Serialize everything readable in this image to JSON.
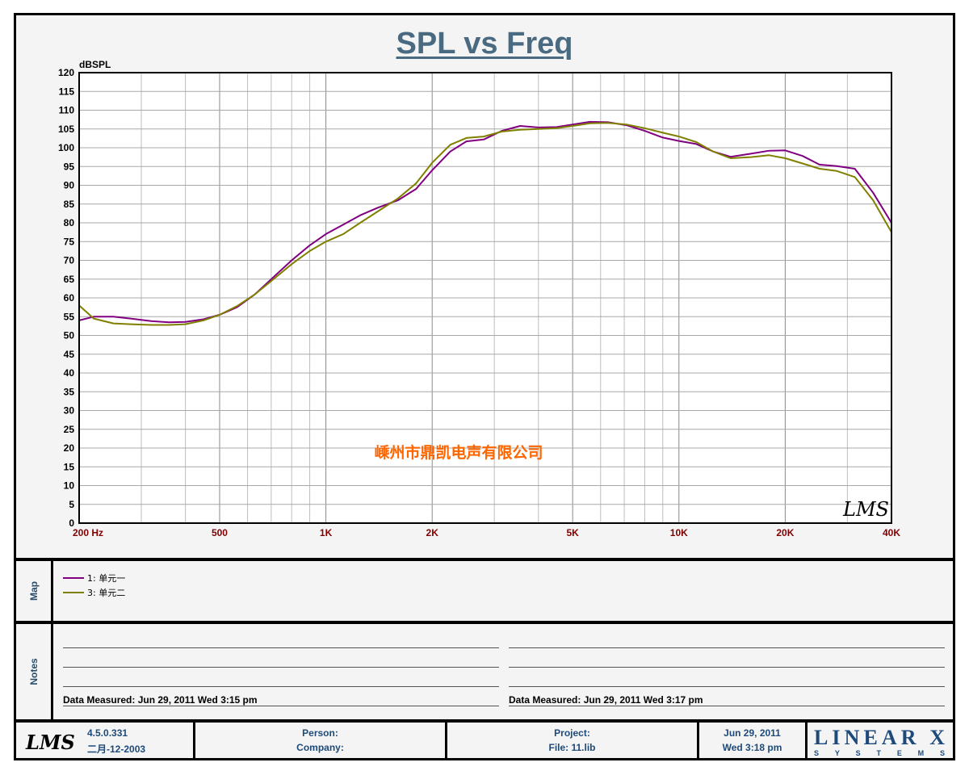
{
  "title": "SPL vs Freq",
  "watermark": "嵊州市鼎凯电声有限公司",
  "logo": "LMS",
  "chart_data": {
    "type": "line",
    "xscale": "log",
    "xlim": [
      200,
      40000
    ],
    "ylim": [
      0,
      120
    ],
    "ylabel": "dBSPL",
    "xlabel": "",
    "grid": true,
    "y_ticks": [
      0,
      5,
      10,
      15,
      20,
      25,
      30,
      35,
      40,
      45,
      50,
      55,
      60,
      65,
      70,
      75,
      80,
      85,
      90,
      95,
      100,
      105,
      110,
      115,
      120
    ],
    "x_tick_labels": [
      {
        "value": 200,
        "label": "200  Hz"
      },
      {
        "value": 500,
        "label": "500"
      },
      {
        "value": 1000,
        "label": "1K"
      },
      {
        "value": 2000,
        "label": "2K"
      },
      {
        "value": 5000,
        "label": "5K"
      },
      {
        "value": 10000,
        "label": "10K"
      },
      {
        "value": 20000,
        "label": "20K"
      },
      {
        "value": 40000,
        "label": "40K"
      }
    ],
    "series": [
      {
        "name": "1: 单元一",
        "color": "#800080",
        "x": [
          200,
          220,
          250,
          280,
          320,
          360,
          400,
          450,
          500,
          560,
          630,
          700,
          800,
          900,
          1000,
          1120,
          1250,
          1400,
          1600,
          1800,
          2000,
          2250,
          2500,
          2800,
          3150,
          3550,
          4000,
          4500,
          5000,
          5600,
          6300,
          7100,
          8000,
          9000,
          10000,
          11200,
          12500,
          14000,
          16000,
          18000,
          20000,
          22400,
          25000,
          28000,
          31500,
          35500,
          40000
        ],
        "y": [
          54,
          55,
          55,
          54.5,
          53.8,
          53.5,
          53.6,
          54.3,
          55.5,
          57.5,
          61,
          65,
          70,
          74,
          77,
          79.5,
          82,
          84,
          86,
          89,
          94,
          99,
          101.7,
          102.2,
          104.5,
          105.8,
          105.4,
          105.5,
          106.2,
          106.9,
          106.8,
          106,
          104.5,
          102.7,
          101.8,
          101,
          99,
          97.6,
          98.4,
          99.2,
          99.3,
          97.8,
          95.5,
          95.1,
          94.4,
          88,
          80
        ]
      },
      {
        "name": "3: 单元二",
        "color": "#808000",
        "x": [
          200,
          220,
          250,
          280,
          320,
          360,
          400,
          450,
          500,
          560,
          630,
          700,
          800,
          900,
          1000,
          1120,
          1250,
          1400,
          1600,
          1800,
          2000,
          2250,
          2500,
          2800,
          3150,
          3550,
          4000,
          4500,
          5000,
          5600,
          6300,
          7100,
          8000,
          9000,
          10000,
          11200,
          12500,
          14000,
          16000,
          18000,
          20000,
          22400,
          25000,
          28000,
          31500,
          35500,
          40000
        ],
        "y": [
          58,
          54.5,
          53.2,
          53,
          52.8,
          52.8,
          53,
          54,
          55.5,
          57.8,
          61,
          64.5,
          69,
          72.5,
          75,
          77,
          80,
          83,
          86.5,
          90.5,
          96,
          100.8,
          102.6,
          103,
          104.3,
          104.8,
          105,
          105.2,
          105.8,
          106.5,
          106.6,
          106.2,
          105.2,
          104,
          103,
          101.5,
          99,
          97.2,
          97.5,
          98,
          97.2,
          95.8,
          94.4,
          93.8,
          92.2,
          86,
          77.5
        ]
      }
    ]
  },
  "map": {
    "label": "Map",
    "entries": [
      {
        "label": "1: 单元一",
        "color": "#800080"
      },
      {
        "label": "3: 单元二",
        "color": "#808000"
      }
    ]
  },
  "notes": {
    "label": "Notes",
    "left": "Data Measured: Jun 29, 2011  Wed  3:15 pm",
    "right": "Data Measured: Jun 29, 2011  Wed  3:17 pm"
  },
  "footer": {
    "version": "4.5.0.331",
    "build_date": "二月-12-2003",
    "person_label": "Person:",
    "company_label": "Company:",
    "project_label": "Project:",
    "file_label": "File: 11.lib",
    "date": "Jun 29, 2011",
    "time": "Wed  3:18 pm",
    "brand": "LINEAR X",
    "brand_sub": "SYSTEMS"
  }
}
